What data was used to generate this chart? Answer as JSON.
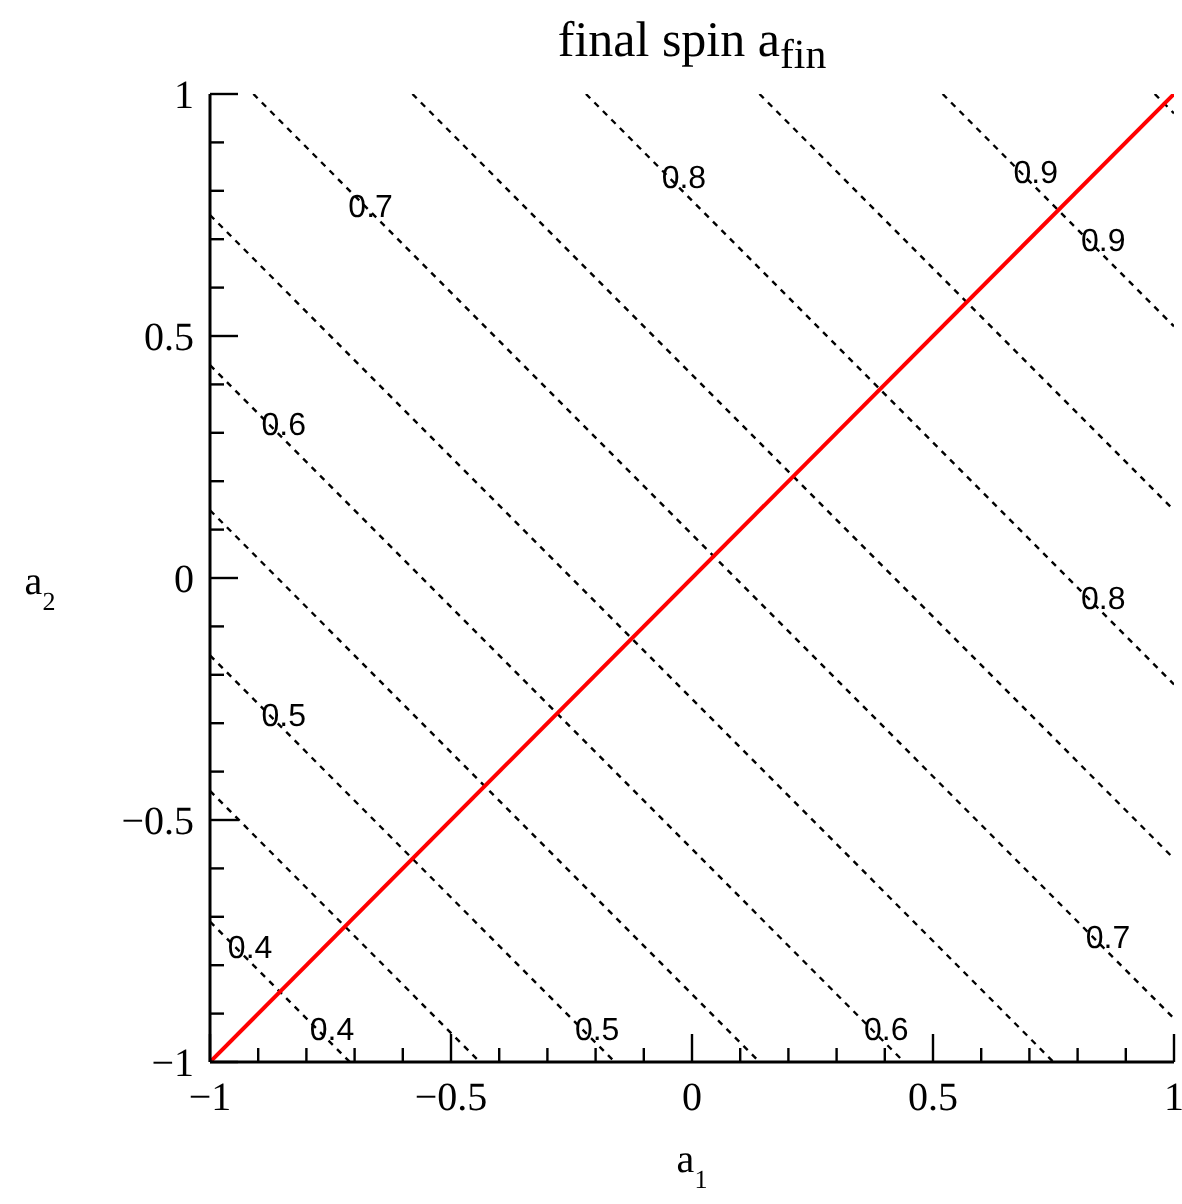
{
  "chart_data": {
    "type": "line",
    "title": "final spin a$_{fin}$",
    "xlabel": "a$_{1}$",
    "ylabel": "a$_{2}$",
    "xlim": [
      -1,
      1
    ],
    "ylim": [
      -1,
      1
    ],
    "xticks": [
      {
        "value": -1,
        "label": "−1"
      },
      {
        "value": -0.9,
        "label": null
      },
      {
        "value": -0.8,
        "label": null
      },
      {
        "value": -0.7,
        "label": null
      },
      {
        "value": -0.6,
        "label": null
      },
      {
        "value": -0.5,
        "label": "−0.5"
      },
      {
        "value": -0.4,
        "label": null
      },
      {
        "value": -0.3,
        "label": null
      },
      {
        "value": -0.2,
        "label": null
      },
      {
        "value": -0.1,
        "label": null
      },
      0,
      {
        "value": 0.1,
        "label": null
      },
      {
        "value": 0.2,
        "label": null
      },
      {
        "value": 0.3,
        "label": null
      },
      {
        "value": 0.4,
        "label": null
      },
      0.5,
      {
        "value": 0.6,
        "label": null
      },
      {
        "value": 0.7,
        "label": null
      },
      {
        "value": 0.8,
        "label": null
      },
      {
        "value": 0.9,
        "label": null
      },
      1
    ],
    "yticks": [
      {
        "value": -1,
        "label": "−1"
      },
      {
        "value": -0.9,
        "label": null
      },
      {
        "value": -0.8,
        "label": null
      },
      {
        "value": -0.7,
        "label": null
      },
      {
        "value": -0.6,
        "label": null
      },
      {
        "value": -0.5,
        "label": "−0.5"
      },
      {
        "value": -0.4,
        "label": null
      },
      {
        "value": -0.3,
        "label": null
      },
      {
        "value": -0.2,
        "label": null
      },
      {
        "value": -0.1,
        "label": null
      },
      0,
      {
        "value": 0.1,
        "label": null
      },
      {
        "value": 0.2,
        "label": null
      },
      {
        "value": 0.3,
        "label": null
      },
      {
        "value": 0.4,
        "label": null
      },
      0.5,
      {
        "value": 0.6,
        "label": null
      },
      {
        "value": 0.7,
        "label": null
      },
      {
        "value": 0.8,
        "label": null
      },
      {
        "value": 0.9,
        "label": null
      },
      1
    ],
    "marker": "none",
    "series": [
      {
        "color": "#000000",
        "line_style": "dashed",
        "x": [
          -1,
          -0.71
        ],
        "values": [
          -0.71,
          -1
        ]
      },
      {
        "color": "#000000",
        "line_style": "dashed",
        "x": [
          -1,
          -0.44
        ],
        "values": [
          -0.44,
          -1
        ]
      },
      {
        "color": "#000000",
        "line_style": "dashed",
        "x": [
          -1,
          -0.16
        ],
        "values": [
          -0.16,
          -1
        ]
      },
      {
        "color": "#000000",
        "line_style": "dashed",
        "x": [
          -1,
          0.14
        ],
        "values": [
          0.14,
          -1
        ]
      },
      {
        "color": "#000000",
        "line_style": "dashed",
        "x": [
          -1,
          0.44
        ],
        "values": [
          0.44,
          -1
        ]
      },
      {
        "color": "#000000",
        "line_style": "dashed",
        "x": [
          -1,
          0.75
        ],
        "values": [
          0.75,
          -1
        ]
      },
      {
        "color": "#000000",
        "line_style": "dashed",
        "x": [
          -0.91,
          1
        ],
        "values": [
          1,
          -0.91
        ]
      },
      {
        "color": "#000000",
        "line_style": "dashed",
        "x": [
          -0.58,
          1
        ],
        "values": [
          1,
          -0.58
        ]
      },
      {
        "color": "#000000",
        "line_style": "dashed",
        "x": [
          -0.22,
          1
        ],
        "values": [
          1,
          -0.22
        ]
      },
      {
        "color": "#000000",
        "line_style": "dashed",
        "x": [
          0.14,
          1
        ],
        "values": [
          1,
          0.14
        ]
      },
      {
        "color": "#000000",
        "line_style": "dashed",
        "x": [
          0.52,
          1
        ],
        "values": [
          1,
          0.52
        ]
      },
      {
        "color": "#000000",
        "line_style": "dashed",
        "x": [
          0.96,
          1
        ],
        "values": [
          1,
          0.96
        ]
      },
      {
        "color": "#ff0000",
        "line_style": "solid",
        "x": [
          -1,
          1
        ],
        "values": [
          -1,
          1
        ]
      }
    ],
    "annotations": [
      {
        "text": "0.7",
        "x": -0.7,
        "y": 0.77
      },
      {
        "text": "0.8",
        "x": -0.05,
        "y": 0.83
      },
      {
        "text": "0.9",
        "x": 0.68,
        "y": 0.84
      },
      {
        "text": "0.9",
        "x": 0.82,
        "y": 0.7
      },
      {
        "text": "0.6",
        "x": -0.88,
        "y": 0.32
      },
      {
        "text": "0.8",
        "x": 0.82,
        "y": -0.04
      },
      {
        "text": "0.5",
        "x": -0.88,
        "y": -0.28
      },
      {
        "text": "0.7",
        "x": 0.83,
        "y": -0.74
      },
      {
        "text": "0.4",
        "x": -0.95,
        "y": -0.76
      },
      {
        "text": "0.4",
        "x": -0.78,
        "y": -0.93
      },
      {
        "text": "0.5",
        "x": -0.23,
        "y": -0.93
      },
      {
        "text": "0.6",
        "x": 0.37,
        "y": -0.93
      }
    ]
  }
}
